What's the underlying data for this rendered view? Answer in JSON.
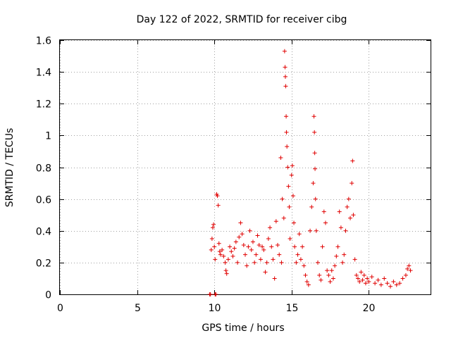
{
  "chart_data": {
    "type": "scatter",
    "title": "Day 122 of 2022, SRMTID for receiver cibg",
    "xlabel": "GPS time / hours",
    "ylabel": "SRMTID / TECUs",
    "xlim": [
      0,
      24
    ],
    "ylim": [
      0,
      1.6
    ],
    "xticks": [
      0,
      5,
      10,
      15,
      20
    ],
    "xtick_labels": [
      "0",
      "5",
      "10",
      "15",
      "20"
    ],
    "yticks": [
      0,
      0.2,
      0.4,
      0.6,
      0.8,
      1.0,
      1.2,
      1.4,
      1.6
    ],
    "ytick_labels": [
      "0",
      "0.2",
      "0.4",
      "0.6",
      "0.8",
      "1",
      "1.2",
      "1.4",
      "1.6"
    ],
    "grid": true,
    "marker": "+",
    "marker_color": "#e00000",
    "series": [
      {
        "name": "SRMTID",
        "points": [
          [
            9.7,
            0.0
          ],
          [
            9.75,
            0.0
          ],
          [
            10.05,
            0.0
          ],
          [
            10.1,
            0.0
          ],
          [
            9.8,
            0.28
          ],
          [
            9.85,
            0.35
          ],
          [
            9.9,
            0.42
          ],
          [
            9.95,
            0.44
          ],
          [
            10.0,
            0.3
          ],
          [
            10.05,
            0.22
          ],
          [
            10.15,
            0.63
          ],
          [
            10.2,
            0.62
          ],
          [
            10.25,
            0.56
          ],
          [
            10.3,
            0.32
          ],
          [
            10.35,
            0.27
          ],
          [
            10.4,
            0.25
          ],
          [
            10.5,
            0.28
          ],
          [
            10.6,
            0.24
          ],
          [
            10.7,
            0.2
          ],
          [
            10.75,
            0.15
          ],
          [
            10.8,
            0.13
          ],
          [
            10.9,
            0.22
          ],
          [
            11.0,
            0.3
          ],
          [
            11.1,
            0.27
          ],
          [
            11.2,
            0.24
          ],
          [
            11.3,
            0.29
          ],
          [
            11.4,
            0.33
          ],
          [
            11.5,
            0.2
          ],
          [
            11.6,
            0.36
          ],
          [
            11.7,
            0.45
          ],
          [
            11.8,
            0.38
          ],
          [
            11.9,
            0.31
          ],
          [
            12.0,
            0.25
          ],
          [
            12.1,
            0.18
          ],
          [
            12.2,
            0.3
          ],
          [
            12.3,
            0.4
          ],
          [
            12.4,
            0.28
          ],
          [
            12.5,
            0.33
          ],
          [
            12.6,
            0.2
          ],
          [
            12.7,
            0.25
          ],
          [
            12.8,
            0.37
          ],
          [
            12.9,
            0.31
          ],
          [
            13.0,
            0.22
          ],
          [
            13.1,
            0.3
          ],
          [
            13.2,
            0.28
          ],
          [
            13.3,
            0.14
          ],
          [
            13.4,
            0.2
          ],
          [
            13.5,
            0.35
          ],
          [
            13.6,
            0.42
          ],
          [
            13.7,
            0.3
          ],
          [
            13.8,
            0.22
          ],
          [
            13.9,
            0.1
          ],
          [
            14.0,
            0.46
          ],
          [
            14.1,
            0.31
          ],
          [
            14.2,
            0.25
          ],
          [
            14.3,
            0.86
          ],
          [
            14.35,
            0.2
          ],
          [
            14.4,
            0.6
          ],
          [
            14.5,
            0.48
          ],
          [
            14.55,
            1.53
          ],
          [
            14.58,
            1.43
          ],
          [
            14.6,
            1.37
          ],
          [
            14.62,
            1.31
          ],
          [
            14.65,
            1.12
          ],
          [
            14.67,
            1.02
          ],
          [
            14.7,
            0.93
          ],
          [
            14.75,
            0.8
          ],
          [
            14.8,
            0.68
          ],
          [
            14.85,
            0.55
          ],
          [
            14.9,
            0.35
          ],
          [
            15.0,
            0.75
          ],
          [
            15.05,
            0.81
          ],
          [
            15.1,
            0.62
          ],
          [
            15.15,
            0.45
          ],
          [
            15.2,
            0.3
          ],
          [
            15.3,
            0.2
          ],
          [
            15.4,
            0.25
          ],
          [
            15.5,
            0.38
          ],
          [
            15.6,
            0.22
          ],
          [
            15.7,
            0.3
          ],
          [
            15.8,
            0.18
          ],
          [
            15.9,
            0.12
          ],
          [
            16.0,
            0.08
          ],
          [
            16.1,
            0.06
          ],
          [
            16.2,
            0.4
          ],
          [
            16.3,
            0.55
          ],
          [
            16.4,
            0.7
          ],
          [
            16.45,
            1.12
          ],
          [
            16.48,
            1.02
          ],
          [
            16.5,
            0.89
          ],
          [
            16.52,
            0.79
          ],
          [
            16.55,
            0.6
          ],
          [
            16.6,
            0.4
          ],
          [
            16.7,
            0.2
          ],
          [
            16.8,
            0.12
          ],
          [
            16.9,
            0.09
          ],
          [
            17.0,
            0.3
          ],
          [
            17.1,
            0.52
          ],
          [
            17.2,
            0.45
          ],
          [
            17.3,
            0.15
          ],
          [
            17.4,
            0.12
          ],
          [
            17.5,
            0.08
          ],
          [
            17.6,
            0.15
          ],
          [
            17.7,
            0.1
          ],
          [
            17.8,
            0.18
          ],
          [
            17.9,
            0.24
          ],
          [
            18.0,
            0.3
          ],
          [
            18.1,
            0.52
          ],
          [
            18.2,
            0.42
          ],
          [
            18.3,
            0.2
          ],
          [
            18.4,
            0.25
          ],
          [
            18.5,
            0.4
          ],
          [
            18.6,
            0.55
          ],
          [
            18.7,
            0.6
          ],
          [
            18.8,
            0.48
          ],
          [
            18.9,
            0.7
          ],
          [
            18.95,
            0.84
          ],
          [
            19.0,
            0.5
          ],
          [
            19.1,
            0.22
          ],
          [
            19.2,
            0.12
          ],
          [
            19.3,
            0.1
          ],
          [
            19.4,
            0.08
          ],
          [
            19.5,
            0.14
          ],
          [
            19.6,
            0.09
          ],
          [
            19.7,
            0.12
          ],
          [
            19.8,
            0.07
          ],
          [
            19.9,
            0.1
          ],
          [
            20.0,
            0.08
          ],
          [
            20.2,
            0.11
          ],
          [
            20.4,
            0.07
          ],
          [
            20.6,
            0.09
          ],
          [
            20.8,
            0.06
          ],
          [
            21.0,
            0.1
          ],
          [
            21.2,
            0.07
          ],
          [
            21.4,
            0.05
          ],
          [
            21.6,
            0.08
          ],
          [
            21.8,
            0.06
          ],
          [
            22.0,
            0.07
          ],
          [
            22.2,
            0.1
          ],
          [
            22.4,
            0.12
          ],
          [
            22.5,
            0.16
          ],
          [
            22.6,
            0.18
          ],
          [
            22.7,
            0.15
          ]
        ]
      }
    ]
  }
}
